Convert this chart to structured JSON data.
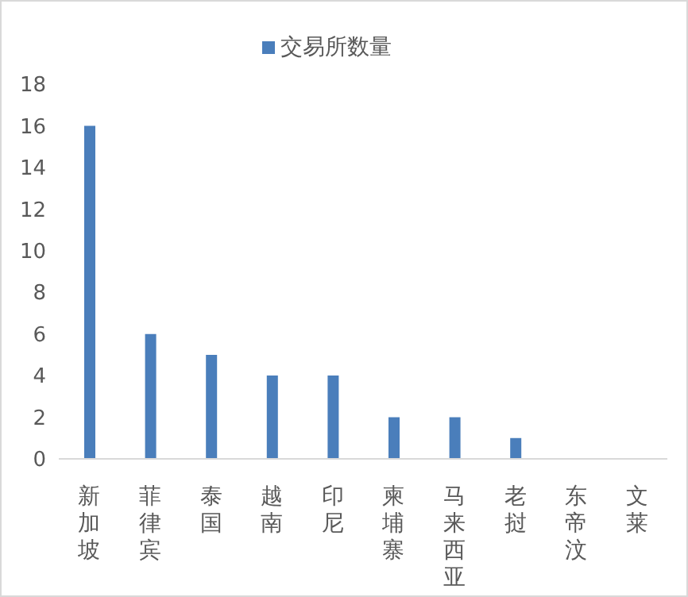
{
  "chart_data": {
    "type": "bar",
    "categories": [
      "新加坡",
      "菲律宾",
      "泰国",
      "越南",
      "印尼",
      "柬埔寨",
      "马来西亚",
      "老挝",
      "东帝汶",
      "文莱"
    ],
    "series": [
      {
        "name": "交易所数量",
        "color": "#4a7ebb",
        "values": [
          16,
          6,
          5,
          4,
          4,
          2,
          2,
          1,
          0,
          0
        ]
      }
    ],
    "ylim": [
      0,
      18
    ],
    "yticks": [
      0,
      2,
      4,
      6,
      8,
      10,
      12,
      14,
      16,
      18
    ],
    "grid": false,
    "legend": "top"
  }
}
